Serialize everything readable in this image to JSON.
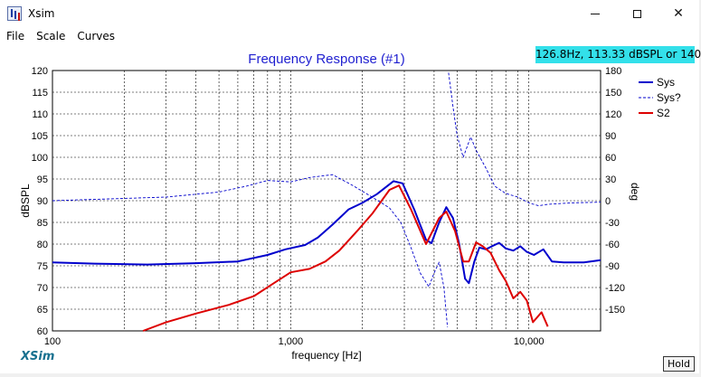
{
  "window": {
    "title": "Xsim",
    "icon": "app-icon",
    "controls": {
      "minimize": "minimize-icon",
      "maximize": "maximize-icon",
      "close": "✕"
    }
  },
  "menu": {
    "items": [
      "File",
      "Scale",
      "Curves"
    ]
  },
  "readout": "126.8Hz, 113.33 dBSPL or 140",
  "hold_label": "Hold",
  "logo": "XSim",
  "colors": {
    "sys": "#0000cc",
    "s2": "#dd0000",
    "title": "#1f1fd0",
    "readout_bg": "#33e0ea",
    "logo": "#17708f"
  },
  "chart_data": {
    "type": "line",
    "title": "Frequency Response (#1)",
    "xlabel": "frequency [Hz]",
    "ylabel": "dBSPL",
    "y2label": "deg",
    "x_scale": "log",
    "xlim": [
      100,
      20000
    ],
    "ylim": [
      60,
      120
    ],
    "y2lim": [
      -180,
      180
    ],
    "grid": true,
    "legend_position": "right",
    "x_ticks": [
      100,
      1000,
      10000
    ],
    "x_tick_labels": [
      "100",
      "1,000",
      "10,000"
    ],
    "y_ticks": [
      60,
      65,
      70,
      75,
      80,
      85,
      90,
      95,
      100,
      105,
      110,
      115,
      120
    ],
    "y2_ticks": [
      -150,
      -120,
      -90,
      -60,
      -30,
      0,
      30,
      60,
      90,
      120,
      150,
      180
    ],
    "series": [
      {
        "name": "Sys",
        "axis": "left",
        "style": "solid",
        "color": "#0000cc",
        "points": [
          [
            100,
            75.8
          ],
          [
            150,
            75.5
          ],
          [
            250,
            75.3
          ],
          [
            400,
            75.6
          ],
          [
            600,
            76.0
          ],
          [
            800,
            77.5
          ],
          [
            950,
            78.8
          ],
          [
            1150,
            79.8
          ],
          [
            1300,
            81.5
          ],
          [
            1500,
            84.5
          ],
          [
            1750,
            88.0
          ],
          [
            2000,
            89.5
          ],
          [
            2300,
            91.5
          ],
          [
            2700,
            94.5
          ],
          [
            2950,
            94.0
          ],
          [
            3300,
            88.0
          ],
          [
            3700,
            81.0
          ],
          [
            3900,
            80.2
          ],
          [
            4200,
            85.0
          ],
          [
            4500,
            88.5
          ],
          [
            4800,
            86.0
          ],
          [
            5100,
            80.0
          ],
          [
            5400,
            72.0
          ],
          [
            5600,
            71.0
          ],
          [
            5900,
            76.0
          ],
          [
            6200,
            79.2
          ],
          [
            6600,
            78.8
          ],
          [
            7000,
            79.5
          ],
          [
            7500,
            80.3
          ],
          [
            8000,
            79.0
          ],
          [
            8600,
            78.5
          ],
          [
            9200,
            79.5
          ],
          [
            9800,
            78.2
          ],
          [
            10500,
            77.5
          ],
          [
            11500,
            78.8
          ],
          [
            12500,
            76.0
          ],
          [
            14000,
            75.8
          ],
          [
            17000,
            75.8
          ],
          [
            20000,
            76.3
          ]
        ]
      },
      {
        "name": "Sys?",
        "axis": "right",
        "style": "dashed",
        "color": "#0000cc",
        "points": [
          [
            100,
            0
          ],
          [
            300,
            5
          ],
          [
            500,
            12
          ],
          [
            650,
            20
          ],
          [
            800,
            28
          ],
          [
            1000,
            26
          ],
          [
            1200,
            32
          ],
          [
            1500,
            36
          ],
          [
            1800,
            22
          ],
          [
            2200,
            5
          ],
          [
            2600,
            -10
          ],
          [
            2900,
            -30
          ],
          [
            3200,
            -65
          ],
          [
            3500,
            -100
          ],
          [
            3800,
            -119
          ],
          [
            4000,
            -100
          ],
          [
            4200,
            -85
          ],
          [
            4400,
            -120
          ],
          [
            4550,
            -175
          ],
          [
            4600,
            177
          ],
          [
            4800,
            130
          ],
          [
            5000,
            90
          ],
          [
            5300,
            60
          ],
          [
            5700,
            88
          ],
          [
            6000,
            70
          ],
          [
            6600,
            45
          ],
          [
            7200,
            20
          ],
          [
            8000,
            10
          ],
          [
            9000,
            5
          ],
          [
            10000,
            -3
          ],
          [
            11000,
            -7
          ],
          [
            12000,
            -5
          ],
          [
            15000,
            -3
          ],
          [
            20000,
            -2
          ]
        ]
      },
      {
        "name": "S2",
        "axis": "left",
        "style": "solid",
        "color": "#dd0000",
        "points": [
          [
            240,
            60
          ],
          [
            300,
            62
          ],
          [
            400,
            64
          ],
          [
            550,
            66
          ],
          [
            700,
            68
          ],
          [
            850,
            71
          ],
          [
            1000,
            73.5
          ],
          [
            1200,
            74.3
          ],
          [
            1400,
            76
          ],
          [
            1600,
            78.5
          ],
          [
            1900,
            83
          ],
          [
            2200,
            87
          ],
          [
            2600,
            92.5
          ],
          [
            2850,
            93.5
          ],
          [
            3200,
            88
          ],
          [
            3700,
            80
          ],
          [
            4200,
            86
          ],
          [
            4500,
            87.5
          ],
          [
            4900,
            83
          ],
          [
            5300,
            76
          ],
          [
            5600,
            76
          ],
          [
            6000,
            80.4
          ],
          [
            6400,
            79.5
          ],
          [
            6900,
            78
          ],
          [
            7500,
            74
          ],
          [
            8000,
            71.5
          ],
          [
            8600,
            67.5
          ],
          [
            9200,
            69
          ],
          [
            9800,
            67
          ],
          [
            10400,
            62
          ],
          [
            11300,
            64.3
          ],
          [
            12000,
            61
          ]
        ]
      }
    ]
  }
}
